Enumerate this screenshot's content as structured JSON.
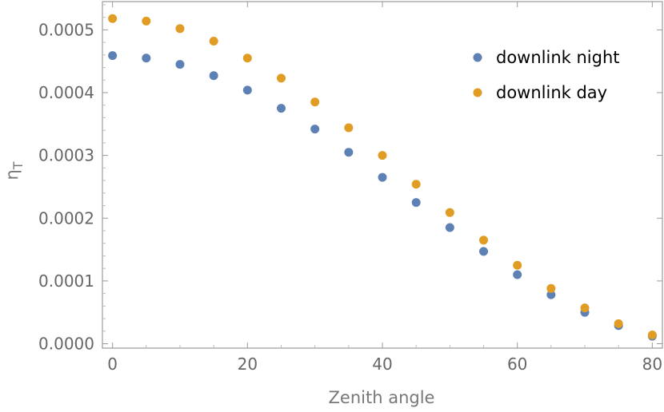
{
  "chart_data": {
    "type": "scatter",
    "title": "",
    "xlabel": "Zenith angle",
    "ylabel": "η",
    "ylabel_subscript": "T",
    "xlim": [
      -1.5,
      81.5
    ],
    "ylim": [
      -7e-06,
      0.000545
    ],
    "xticks": [
      0,
      20,
      40,
      60,
      80
    ],
    "xtick_labels": [
      "0",
      "20",
      "40",
      "60",
      "80"
    ],
    "yticks": [
      0,
      0.0001,
      0.0002,
      0.0003,
      0.0004,
      0.0005
    ],
    "ytick_labels": [
      "0.0000",
      "0.0001",
      "0.0002",
      "0.0003",
      "0.0004",
      "0.0005"
    ],
    "grid": false,
    "legend_position": "top-right",
    "x": [
      0,
      5,
      10,
      15,
      20,
      25,
      30,
      35,
      40,
      45,
      50,
      55,
      60,
      65,
      70,
      75,
      80
    ],
    "series": [
      {
        "name": "downlink night",
        "color": "#5e81b5",
        "values": [
          0.000459,
          0.000455,
          0.000445,
          0.000427,
          0.000404,
          0.000375,
          0.000342,
          0.000305,
          0.000265,
          0.000225,
          0.000185,
          0.000147,
          0.00011,
          7.8e-05,
          5e-05,
          2.9e-05,
          1.2e-05
        ]
      },
      {
        "name": "downlink day",
        "color": "#e19c24",
        "values": [
          0.000518,
          0.000514,
          0.000502,
          0.000482,
          0.000455,
          0.000423,
          0.000385,
          0.000344,
          0.0003,
          0.000254,
          0.000209,
          0.000165,
          0.000125,
          8.8e-05,
          5.7e-05,
          3.2e-05,
          1.4e-05
        ]
      }
    ]
  }
}
